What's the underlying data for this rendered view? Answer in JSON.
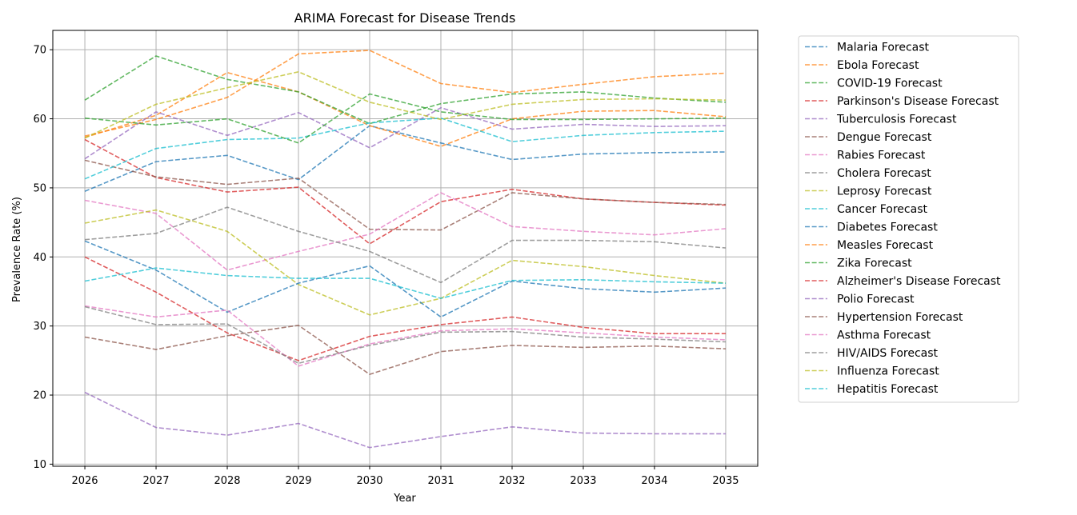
{
  "chart_data": {
    "type": "line",
    "title": "ARIMA Forecast for Disease Trends",
    "xlabel": "Year",
    "ylabel": "Prevalence Rate (%)",
    "x": [
      2026,
      2027,
      2028,
      2029,
      2030,
      2031,
      2032,
      2033,
      2034,
      2035
    ],
    "xlim": [
      2025.55,
      2035.45
    ],
    "ylim": [
      9.7,
      72.8
    ],
    "yticks": [
      10,
      20,
      30,
      40,
      50,
      60,
      70
    ],
    "grid": true,
    "line_style": "dashed",
    "legend_position": "outside-right",
    "series": [
      {
        "name": "Malaria Forecast",
        "color": "#1f77b4",
        "values": [
          49.5,
          53.8,
          54.7,
          51.2,
          59.0,
          56.5,
          54.1,
          54.9,
          55.1,
          55.2
        ]
      },
      {
        "name": "Ebola Forecast",
        "color": "#ff7f0e",
        "values": [
          57.3,
          60.5,
          66.7,
          63.9,
          59.0,
          56.0,
          60.0,
          61.1,
          61.2,
          60.3
        ]
      },
      {
        "name": "COVID-19 Forecast",
        "color": "#2ca02c",
        "values": [
          62.7,
          69.1,
          65.7,
          63.9,
          59.3,
          62.2,
          63.6,
          63.9,
          63.0,
          62.4
        ]
      },
      {
        "name": "Parkinson's Disease Forecast",
        "color": "#d62728",
        "values": [
          57.0,
          51.5,
          49.4,
          50.1,
          41.9,
          48.0,
          49.8,
          48.4,
          47.9,
          47.5
        ]
      },
      {
        "name": "Tuberculosis Forecast",
        "color": "#9467bd",
        "values": [
          54.2,
          61.0,
          57.6,
          60.9,
          55.8,
          61.6,
          58.5,
          59.2,
          58.9,
          59.0
        ]
      },
      {
        "name": "Dengue Forecast",
        "color": "#8c564b",
        "values": [
          54.0,
          51.6,
          50.5,
          51.4,
          44.0,
          43.9,
          49.3,
          48.4,
          47.9,
          47.6
        ]
      },
      {
        "name": "Rabies Forecast",
        "color": "#e377c2",
        "values": [
          48.2,
          46.3,
          38.1,
          40.8,
          43.3,
          49.3,
          44.4,
          43.7,
          43.2,
          44.1
        ]
      },
      {
        "name": "Cholera Forecast",
        "color": "#7f7f7f",
        "values": [
          42.5,
          43.4,
          47.2,
          43.7,
          40.8,
          36.3,
          42.4,
          42.4,
          42.2,
          41.3
        ]
      },
      {
        "name": "Leprosy Forecast",
        "color": "#bcbd22",
        "values": [
          44.9,
          46.8,
          43.7,
          36.0,
          31.6,
          34.0,
          39.5,
          38.6,
          37.3,
          36.2
        ]
      },
      {
        "name": "Cancer Forecast",
        "color": "#17becf",
        "values": [
          51.3,
          55.7,
          57.0,
          57.2,
          59.4,
          60.1,
          56.7,
          57.6,
          58.0,
          58.2
        ]
      },
      {
        "name": "Diabetes Forecast",
        "color": "#1f77b4",
        "values": [
          42.3,
          38.1,
          32.0,
          36.2,
          38.7,
          31.3,
          36.5,
          35.4,
          34.9,
          35.5
        ]
      },
      {
        "name": "Measles Forecast",
        "color": "#ff7f0e",
        "values": [
          57.5,
          59.9,
          63.1,
          69.4,
          69.9,
          65.1,
          63.8,
          65.0,
          66.1,
          66.6
        ]
      },
      {
        "name": "Zika Forecast",
        "color": "#2ca02c",
        "values": [
          60.1,
          59.1,
          60.0,
          56.5,
          63.6,
          61.0,
          59.9,
          59.9,
          60.0,
          60.1
        ]
      },
      {
        "name": "Alzheimer's Disease Forecast",
        "color": "#d62728",
        "values": [
          40.0,
          34.9,
          29.0,
          25.0,
          28.5,
          30.2,
          31.3,
          29.8,
          28.9,
          28.9
        ]
      },
      {
        "name": "Polio Forecast",
        "color": "#9467bd",
        "values": [
          20.4,
          15.3,
          14.2,
          15.9,
          12.4,
          14.0,
          15.4,
          14.5,
          14.4,
          14.4
        ]
      },
      {
        "name": "Hypertension Forecast",
        "color": "#8c564b",
        "values": [
          28.4,
          26.6,
          28.6,
          30.1,
          23.0,
          26.3,
          27.2,
          26.9,
          27.1,
          26.7
        ]
      },
      {
        "name": "Asthma Forecast",
        "color": "#e377c2",
        "values": [
          32.9,
          31.3,
          32.3,
          24.2,
          27.4,
          29.3,
          29.6,
          29.0,
          28.4,
          28.0
        ]
      },
      {
        "name": "HIV/AIDS Forecast",
        "color": "#7f7f7f",
        "values": [
          32.8,
          30.2,
          30.3,
          24.6,
          27.2,
          29.1,
          29.2,
          28.4,
          28.1,
          27.7
        ]
      },
      {
        "name": "Influenza Forecast",
        "color": "#bcbd22",
        "values": [
          57.2,
          62.1,
          64.5,
          66.8,
          62.4,
          59.9,
          62.1,
          62.8,
          62.9,
          62.7
        ]
      },
      {
        "name": "Hepatitis Forecast",
        "color": "#17becf",
        "values": [
          36.5,
          38.4,
          37.3,
          36.9,
          36.9,
          34.0,
          36.6,
          36.7,
          36.4,
          36.2
        ]
      }
    ]
  }
}
